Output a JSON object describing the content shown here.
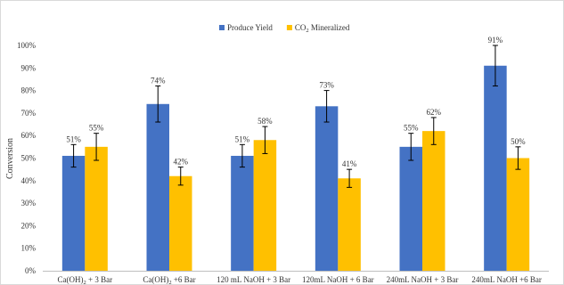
{
  "chart_data": {
    "type": "bar",
    "ylabel": "Conversion",
    "ylim": [
      0,
      110
    ],
    "yticks": [
      "0%",
      "10%",
      "20%",
      "30%",
      "40%",
      "50%",
      "60%",
      "70%",
      "80%",
      "90%",
      "100%"
    ],
    "grid": false,
    "legend_position": "top-center",
    "categories": [
      {
        "pre": "Ca(OH)",
        "sub": "2",
        "post": "  + 3 Bar"
      },
      {
        "pre": "Ca(OH)",
        "sub": "2",
        "post": "  +6 Bar"
      },
      {
        "pre": "120 mL NaOH + 3 Bar",
        "sub": "",
        "post": ""
      },
      {
        "pre": "120mL NaOH + 6 Bar",
        "sub": "",
        "post": ""
      },
      {
        "pre": "240mL NaOH + 3 Bar",
        "sub": "",
        "post": ""
      },
      {
        "pre": "240mL NaOH +6 Bar",
        "sub": "",
        "post": ""
      }
    ],
    "series": [
      {
        "legend": {
          "pre": "Produce Yield",
          "sub": "",
          "post": ""
        },
        "color": "#4472C4",
        "values": [
          51,
          74,
          51,
          73,
          55,
          91
        ],
        "labels": [
          "51%",
          "74%",
          "51%",
          "73%",
          "55%",
          "91%"
        ],
        "errors": [
          5,
          8,
          5,
          7,
          6,
          9
        ]
      },
      {
        "legend": {
          "pre": "CO",
          "sub": "2",
          "post": " Mineralized"
        },
        "color": "#FFC000",
        "values": [
          55,
          42,
          58,
          41,
          62,
          50
        ],
        "labels": [
          "55%",
          "42%",
          "58%",
          "41%",
          "62%",
          "50%"
        ],
        "errors": [
          6,
          4,
          6,
          4,
          6,
          5
        ]
      }
    ]
  }
}
